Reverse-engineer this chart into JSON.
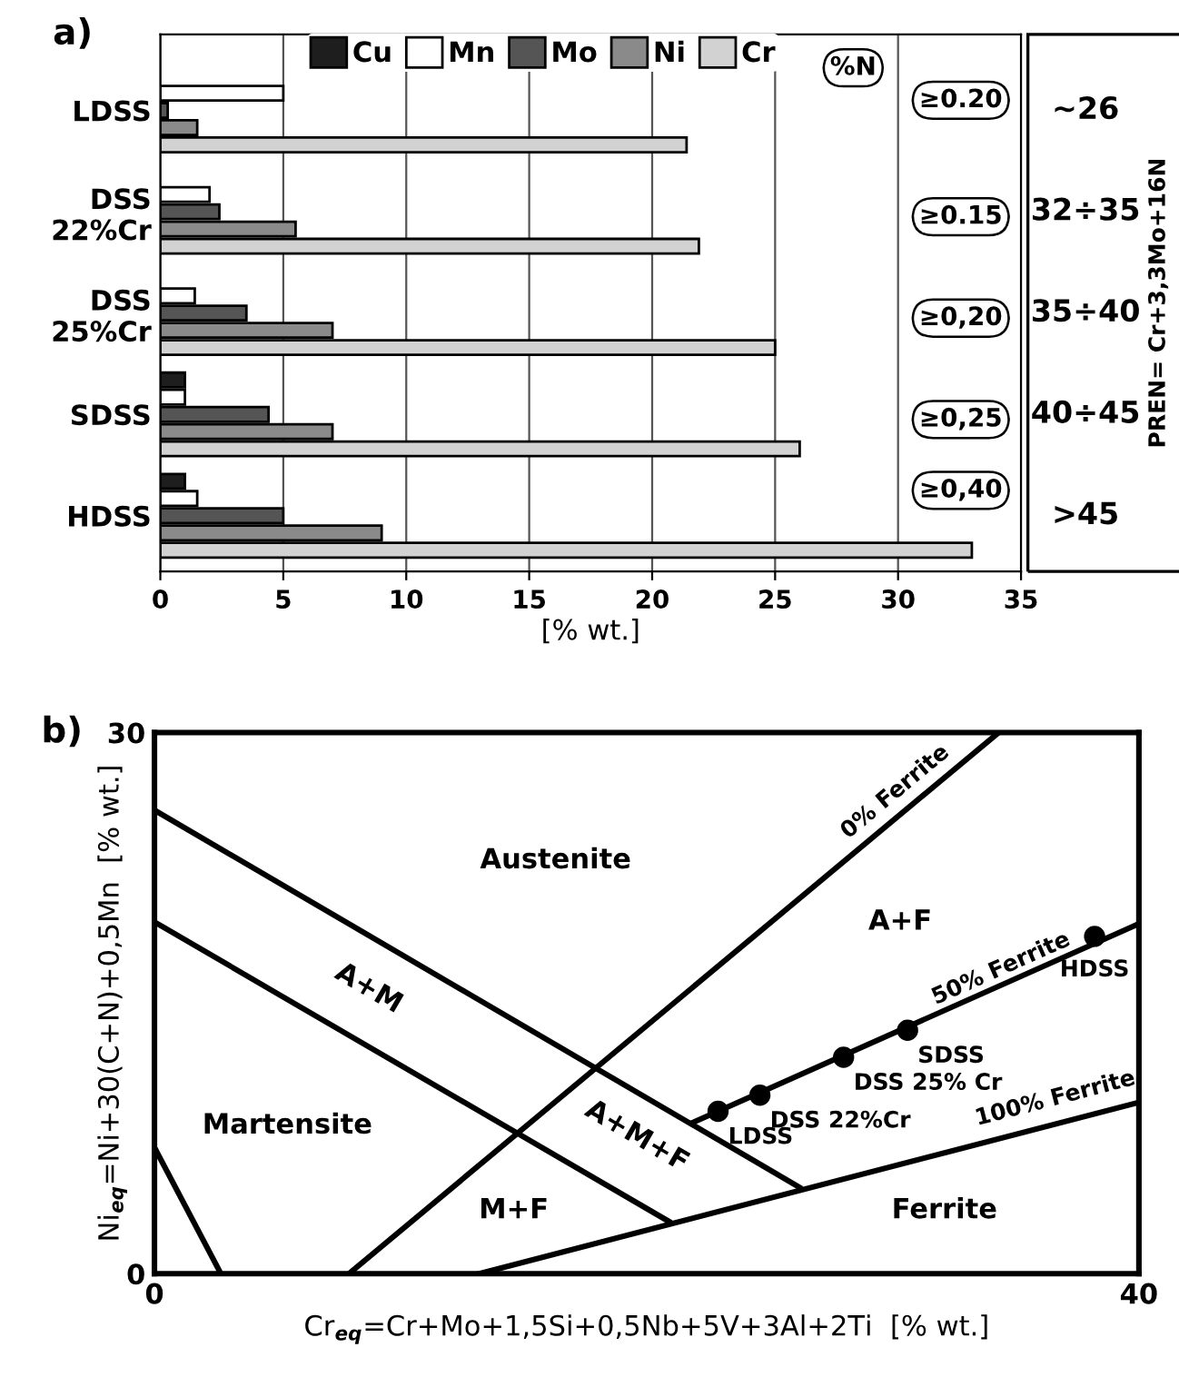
{
  "chart_data": [
    {
      "type": "bar",
      "orientation": "horizontal",
      "title": "a)",
      "xlabel": "[% wt.]",
      "categories": [
        "LDSS",
        "DSS\n22%Cr",
        "DSS\n25%Cr",
        "SDSS",
        "HDSS"
      ],
      "series": [
        {
          "name": "Cu",
          "color": "#1e1e1e",
          "values": [
            null,
            null,
            null,
            1.0,
            1.0
          ]
        },
        {
          "name": "Mn",
          "color": "#ffffff",
          "values": [
            5.0,
            2.0,
            1.4,
            1.0,
            1.5
          ]
        },
        {
          "name": "Mo",
          "color": "#555555",
          "values": [
            0.3,
            2.4,
            3.5,
            4.4,
            5.0
          ]
        },
        {
          "name": "Ni",
          "color": "#8a8a8a",
          "values": [
            1.5,
            5.5,
            7.0,
            7.0,
            9.0
          ]
        },
        {
          "name": "Cr",
          "color": "#d2d2d2",
          "values": [
            21.4,
            21.9,
            25.0,
            26.0,
            33.0
          ]
        }
      ],
      "xlim": [
        0,
        35
      ],
      "xticks": [
        0,
        5,
        10,
        15,
        20,
        25,
        30,
        35
      ],
      "grid": "x",
      "legend": "top left",
      "annotations": [
        "%N",
        "≥0.20",
        "≥0.15",
        "≥0,20",
        "≥0,25",
        "≥0,40",
        "~26",
        "32÷35",
        "35÷40",
        "40÷45",
        ">45",
        "PREN= Cr+3,3Mo+16N"
      ]
    },
    {
      "type": "line",
      "title": "b)",
      "xlabel": "Cr$_{eq}$=Cr+Mo+1,5Si+0,5Nb+5V+3Al+2Ti  [% wt.]",
      "ylabel": "Ni$_{eq}$=Ni+30(C+N)+0,5Mn  [% wt.]",
      "xlim": [
        0,
        40
      ],
      "ylim": [
        0,
        30
      ],
      "xticks": [
        0,
        40
      ],
      "yticks": [
        0,
        30
      ],
      "series": [
        {
          "color": "#000000",
          "x": [
            0,
            26.2
          ],
          "values": [
            25.7,
            4.8
          ]
        },
        {
          "color": "#000000",
          "x": [
            0,
            20.9
          ],
          "values": [
            19.5,
            2.9
          ]
        },
        {
          "color": "#000000",
          "x": [
            0,
            2.7
          ],
          "values": [
            7.0,
            0
          ]
        },
        {
          "color": "#000000",
          "x": [
            7.9,
            34.3
          ],
          "values": [
            0,
            30
          ]
        },
        {
          "color": "#000000",
          "x": [
            13.2,
            40
          ],
          "values": [
            0,
            9.5
          ]
        },
        {
          "color": "#000000",
          "x": [
            21.9,
            40
          ],
          "values": [
            8.4,
            19.4
          ]
        },
        {
          "type": "scatter",
          "marker": "circle",
          "color": "#000000",
          "x": [
            22.9,
            24.6,
            28.0,
            30.6,
            38.2
          ],
          "values": [
            9.0,
            9.9,
            12.0,
            13.5,
            18.7
          ],
          "value_labels": [
            "LDSS",
            "DSS 22%Cr",
            "DSS 25% Cr",
            "SDSS",
            "HDSS"
          ]
        }
      ],
      "annotations": [
        "Austenite",
        "A+F",
        "A+M",
        "Martensite",
        "A+M+F",
        "M+F",
        "Ferrite",
        "0% Ferrite",
        "50% Ferrite",
        "100% Ferrite"
      ]
    }
  ]
}
